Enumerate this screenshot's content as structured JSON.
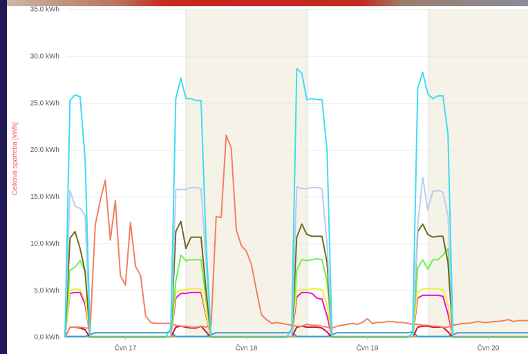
{
  "chart_data": {
    "type": "line",
    "y_axis_title": "Celková spotřeba [kWh]",
    "x": [
      0,
      1,
      2,
      3,
      4,
      5,
      6,
      7,
      8,
      9,
      10,
      11,
      12,
      13,
      14,
      15,
      16,
      17,
      18,
      19,
      20,
      21,
      22,
      23,
      24,
      25,
      26,
      27,
      28,
      29,
      30,
      31,
      32,
      33,
      34,
      35,
      36,
      37,
      38,
      39,
      40,
      41,
      42,
      43,
      44,
      45,
      46,
      47,
      48,
      49,
      50,
      51,
      52,
      53,
      54,
      55,
      56,
      57,
      58,
      59,
      60,
      61,
      62,
      63,
      64,
      65,
      66,
      67,
      68,
      69,
      70,
      71,
      72,
      73,
      74,
      75,
      76,
      77,
      78,
      79,
      80,
      81,
      82,
      83,
      84,
      85,
      86,
      87,
      88,
      89,
      90,
      91,
      92
    ],
    "xlim": [
      0,
      92
    ],
    "xticks": [
      {
        "value": 12,
        "label": "Čvn 17"
      },
      {
        "value": 36,
        "label": "Čvn 18"
      },
      {
        "value": 60,
        "label": "Čvn 19"
      },
      {
        "value": 84,
        "label": "Čvn 20"
      }
    ],
    "ylim": [
      0,
      35
    ],
    "yticks": [
      {
        "value": 0,
        "label": "0,0 kWh"
      },
      {
        "value": 5,
        "label": "5,0 kWh"
      },
      {
        "value": 10,
        "label": "10,0 kWh"
      },
      {
        "value": 15,
        "label": "15,0 kWh"
      },
      {
        "value": 20,
        "label": "20,0 kWh"
      },
      {
        "value": 25,
        "label": "25,0 kWh"
      },
      {
        "value": 30,
        "label": "30,0 kWh"
      },
      {
        "value": 35,
        "label": "35,0 kWh"
      }
    ],
    "grid": true,
    "series": [
      {
        "color": "#e0a010",
        "values": [
          0.1,
          0.1,
          0.1,
          0.1,
          0.1,
          0.1,
          0.1,
          0.1,
          0.1,
          0.1,
          0.1,
          0.1,
          0.1,
          0.1,
          0.1,
          0.1,
          0.1,
          0.1,
          0.1,
          0.1,
          0.1,
          0.1,
          0.1,
          0.1,
          0.1,
          0.1,
          0.1,
          0.1,
          0.1,
          0.1,
          0.1,
          0.1,
          0.1,
          0.1,
          0.1,
          0.1,
          0.1,
          0.1,
          0.1,
          0.1,
          0.1,
          0.1,
          0.1,
          0.1,
          0.1,
          0.1,
          0.1,
          0.1,
          0.1,
          0.1,
          0.1,
          0.1,
          0.1,
          0.1,
          0.1,
          0.1,
          0.1,
          0.1,
          0.1,
          0.1,
          0.1,
          0.1,
          0.1,
          0.1,
          0.1,
          0.1,
          0.1,
          0.1,
          0.1,
          0.1,
          0.1,
          0.1,
          0.1,
          0.1,
          0.1,
          0.1,
          0.1,
          0.1,
          0.1,
          0.1,
          0.1,
          0.1,
          0.1,
          0.1,
          0.1,
          0.1,
          0.1,
          0.1,
          0.1,
          0.1,
          0.1,
          0.1,
          0.1
        ]
      },
      {
        "color": "#2aa0dc",
        "values": [
          0.1,
          0.1,
          0.1,
          0.1,
          0.1,
          0.3,
          0.5,
          0.5,
          0.5,
          0.5,
          0.5,
          0.5,
          0.5,
          0.5,
          0.5,
          0.5,
          0.5,
          0.5,
          0.5,
          0.5,
          0.5,
          0.6,
          0.1,
          0.1,
          0.1,
          0.1,
          0.1,
          0.1,
          0.1,
          0.3,
          0.5,
          0.5,
          0.5,
          0.5,
          0.5,
          0.5,
          0.5,
          0.5,
          0.5,
          0.5,
          0.5,
          0.5,
          0.5,
          0.5,
          0.5,
          0.6,
          0.1,
          0.1,
          0.1,
          0.1,
          0.1,
          0.1,
          0.1,
          0.3,
          0.5,
          0.5,
          0.5,
          0.5,
          0.5,
          0.5,
          0.5,
          0.5,
          0.5,
          0.5,
          0.5,
          0.5,
          0.5,
          0.5,
          0.5,
          0.6,
          0.1,
          0.1,
          0.1,
          0.1,
          0.1,
          0.1,
          0.1,
          0.3,
          0.5,
          0.5,
          0.5,
          0.5,
          0.5,
          0.5,
          0.5,
          0.5,
          0.5,
          0.5,
          0.5,
          0.5,
          0.5,
          0.5,
          0.5
        ]
      },
      {
        "color": "#d0102a",
        "values": [
          0,
          1.1,
          1.1,
          1.0,
          0.8,
          0,
          0,
          0,
          0,
          0,
          0,
          0,
          0,
          0,
          0,
          0,
          0,
          0,
          0,
          0,
          0,
          0,
          1.1,
          1.2,
          1.1,
          1.0,
          1.0,
          1.2,
          0.6,
          0,
          0,
          0,
          0,
          0,
          0,
          0,
          0,
          0,
          0,
          0,
          0,
          0,
          0,
          0,
          0,
          0,
          1.1,
          1.2,
          1.1,
          1.1,
          1.1,
          1.0,
          0.6,
          0,
          0,
          0,
          0,
          0,
          0,
          0,
          0,
          0,
          0,
          0,
          0,
          0,
          0,
          0,
          0,
          0,
          1.1,
          1.2,
          1.2,
          1.1,
          1.1,
          1.1,
          0.6,
          0,
          0,
          0,
          0,
          0,
          0,
          0,
          0,
          0,
          0,
          0,
          0,
          0,
          0,
          0,
          0
        ]
      },
      {
        "color": "#f47e5e",
        "values": [
          0,
          1.1,
          1.1,
          1.1,
          1.0,
          1.0,
          12,
          14.6,
          16.8,
          10.4,
          14.6,
          6.6,
          5.6,
          12.3,
          7.6,
          6.6,
          2.3,
          1.6,
          1.5,
          1.5,
          1.5,
          1.5,
          1.3,
          1.2,
          1.2,
          1.1,
          1.1,
          1.2,
          1.1,
          1.3,
          12.9,
          12.8,
          21.6,
          20.2,
          11.5,
          9.8,
          9.2,
          7.8,
          5,
          2.4,
          1.9,
          1.5,
          1.6,
          1.5,
          1.4,
          1.3,
          1.2,
          1.2,
          1.4,
          1.3,
          1.3,
          1.2,
          1.1,
          1.0,
          1.2,
          1.3,
          1.4,
          1.5,
          1.4,
          1.6,
          2.0,
          1.5,
          1.6,
          1.6,
          1.7,
          1.7,
          1.6,
          1.6,
          1.5,
          1.4,
          1.4,
          1.3,
          1.3,
          1.2,
          1.2,
          1.1,
          1.1,
          1.3,
          1.4,
          1.5,
          1.5,
          1.6,
          1.7,
          1.6,
          1.6,
          1.7,
          1.7,
          1.8,
          1.9,
          1.7,
          1.8,
          1.8,
          1.8
        ]
      },
      {
        "color": "#e810d8",
        "values": [
          0,
          4.7,
          4.8,
          4.8,
          3.5,
          0,
          0,
          0,
          0,
          0,
          0,
          0,
          0,
          0,
          0,
          0,
          0,
          0,
          0,
          0,
          0,
          0,
          4.2,
          4.7,
          4.7,
          4.8,
          4.8,
          4.8,
          2.3,
          0,
          0,
          0,
          0,
          0,
          0,
          0,
          0,
          0,
          0,
          0,
          0,
          0,
          0,
          0,
          0,
          0,
          4.3,
          4.8,
          4.8,
          4.7,
          4.2,
          4.1,
          2.3,
          0,
          0,
          0,
          0,
          0,
          0,
          0,
          0,
          0,
          0,
          0,
          0,
          0,
          0,
          0,
          0,
          0,
          4.2,
          4.5,
          4.5,
          4.5,
          4.5,
          4.4,
          2.5,
          0,
          0,
          0,
          0,
          0,
          0,
          0,
          0,
          0,
          0,
          0,
          0,
          0,
          0,
          0,
          0
        ]
      },
      {
        "color": "#f0f030",
        "values": [
          0,
          5,
          5.2,
          5.1,
          4,
          0,
          0,
          0,
          0,
          0,
          0,
          0,
          0,
          0,
          0,
          0,
          0,
          0,
          0,
          0,
          0,
          0,
          4.8,
          5.1,
          5.1,
          5.2,
          5.2,
          5.2,
          2.5,
          0,
          0,
          0,
          0,
          0,
          0,
          0,
          0,
          0,
          0,
          0,
          0,
          0,
          0,
          0,
          0,
          0,
          5,
          5.1,
          5.1,
          5.2,
          5.2,
          5.1,
          3.5,
          0,
          0,
          0,
          0,
          0,
          0,
          0,
          0,
          0,
          0,
          0,
          0,
          0,
          0,
          0,
          0,
          0,
          4.8,
          5.2,
          5.2,
          5.2,
          5.2,
          5.1,
          3.5,
          0,
          0,
          0,
          0,
          0,
          0,
          0,
          0,
          0,
          0,
          0,
          0,
          0,
          0,
          0,
          0
        ]
      },
      {
        "color": "#6af04a",
        "values": [
          0,
          7.2,
          7.5,
          8.2,
          7,
          0,
          0,
          0,
          0,
          0,
          0,
          0,
          0,
          0,
          0,
          0,
          0,
          0,
          0,
          0,
          0,
          0,
          6,
          8.8,
          8.2,
          8.3,
          8.3,
          8.3,
          4,
          0,
          0,
          0,
          0,
          0,
          0,
          0,
          0,
          0,
          0,
          0,
          0,
          0,
          0,
          0,
          0,
          0,
          7.2,
          8.3,
          8.2,
          8.3,
          8.4,
          8.3,
          6,
          0,
          0,
          0,
          0,
          0,
          0,
          0,
          0,
          0,
          0,
          0,
          0,
          0,
          0,
          0,
          0,
          0,
          7.4,
          8.3,
          7.3,
          8.3,
          8.3,
          8.8,
          9.5,
          0,
          0,
          0,
          0,
          0,
          0,
          0,
          0,
          0,
          0,
          0,
          0,
          0,
          0,
          0,
          0
        ]
      },
      {
        "color": "#6e6a1a",
        "values": [
          0,
          10.6,
          11.3,
          9.5,
          7,
          0,
          0,
          0,
          0,
          0,
          0,
          0,
          0,
          0,
          0,
          0,
          0,
          0,
          0,
          0,
          0,
          0,
          11.3,
          12.4,
          9.5,
          10.7,
          10.7,
          10.7,
          5,
          0,
          0,
          0,
          0,
          0,
          0,
          0,
          0,
          0,
          0,
          0,
          0,
          0,
          0,
          0,
          0,
          0,
          10.7,
          12.1,
          11,
          10.8,
          10.8,
          10.8,
          8,
          0,
          0,
          0,
          0,
          0,
          0,
          0,
          0,
          0,
          0,
          0,
          0,
          0,
          0,
          0,
          0,
          0,
          11.3,
          12.1,
          11,
          10.7,
          10.8,
          10.8,
          8,
          0,
          0,
          0,
          0,
          0,
          0,
          0,
          0,
          0,
          0,
          0,
          0,
          0,
          0,
          0,
          0
        ]
      },
      {
        "color": "#b7cdf0",
        "values": [
          0,
          15.7,
          14,
          13.8,
          13,
          0,
          0,
          0,
          0,
          0,
          0,
          0,
          0,
          0,
          0,
          0,
          0,
          0,
          0,
          0,
          0,
          0,
          15.8,
          15.8,
          15.8,
          16,
          16,
          15.9,
          8,
          0,
          0,
          0,
          0,
          0,
          0,
          0,
          0,
          0,
          0,
          0,
          0,
          0,
          0,
          0,
          0,
          0,
          16.1,
          15.9,
          15.9,
          16,
          16,
          15.9,
          10,
          0,
          0,
          0,
          0,
          0,
          0,
          0,
          0,
          0,
          0,
          0,
          0,
          0,
          0,
          0,
          0,
          0,
          12,
          17.1,
          13.6,
          15.6,
          15.7,
          15.5,
          13,
          0,
          0,
          0,
          0,
          0,
          0,
          0,
          0,
          0,
          0,
          0,
          0,
          0,
          0,
          0,
          0
        ]
      },
      {
        "color": "#3ddcf2",
        "values": [
          0,
          25.3,
          25.9,
          25.7,
          19,
          0,
          0,
          0,
          0,
          0,
          0,
          0,
          0,
          0,
          0,
          0,
          0,
          0,
          0,
          0,
          0,
          1,
          25.5,
          27.7,
          25.5,
          25.5,
          25.3,
          25.3,
          10,
          0,
          0,
          0,
          0,
          0,
          0,
          0,
          0,
          0,
          0,
          0,
          0,
          0,
          0,
          0,
          0,
          1,
          28.7,
          28.2,
          25.4,
          25.5,
          25.4,
          25.4,
          20,
          0,
          0,
          0,
          0,
          0,
          0,
          0,
          0,
          0,
          0,
          0,
          0,
          0,
          0,
          0,
          0,
          0.5,
          26.6,
          28.3,
          26,
          25.5,
          25.8,
          25.8,
          21.7,
          0,
          0,
          0,
          0,
          0,
          0,
          0,
          0,
          0,
          0,
          0,
          0,
          0,
          0,
          0,
          0
        ]
      }
    ]
  }
}
